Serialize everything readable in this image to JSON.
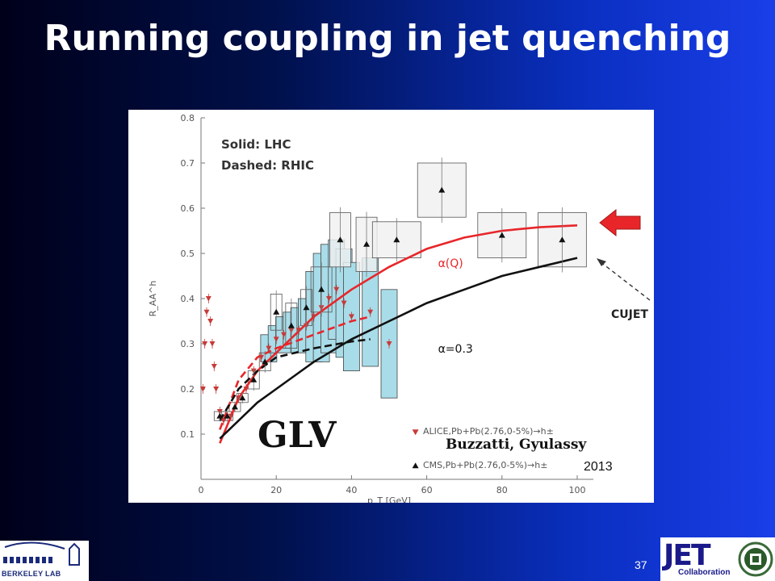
{
  "slide": {
    "title": "Running coupling in jet quenching",
    "page_number": "37"
  },
  "logos": {
    "left_text": "BERKELEY LAB",
    "right_word": "JET",
    "right_sub": "Collaboration"
  },
  "colors": {
    "red_curve": "#e8262a",
    "black_curve": "#111111",
    "alice_marker": "#c83a3a",
    "box_blue": "#a8dce8",
    "box_grey": "#f0f0f0",
    "arrow_red": "#e8262a"
  },
  "chart_data": {
    "type": "scatter",
    "title": "",
    "xlabel": "p_T [GeV]",
    "ylabel": "R_AA^h",
    "xlim": [
      0,
      100
    ],
    "ylim": [
      0,
      0.8
    ],
    "x_ticks": [
      0,
      20,
      40,
      60,
      80,
      100
    ],
    "y_ticks": [
      0.1,
      0.2,
      0.3,
      0.4,
      0.5,
      0.6,
      0.7,
      0.8
    ],
    "grid": false,
    "notes": [
      "Solid: LHC",
      "Dashed: RHIC"
    ],
    "annotations": {
      "glv": "GLV",
      "authors": "Buzzatti, Gyulassy",
      "year": "2013",
      "cujet": "CUJET"
    },
    "series": [
      {
        "name": "α(Q)",
        "kind": "curve",
        "style": "solid",
        "color": "#e8262a",
        "x": [
          5,
          10,
          15,
          20,
          30,
          40,
          50,
          60,
          70,
          80,
          90,
          100
        ],
        "y": [
          0.08,
          0.18,
          0.24,
          0.28,
          0.36,
          0.42,
          0.47,
          0.51,
          0.535,
          0.55,
          0.558,
          0.562
        ]
      },
      {
        "name": "α=0.3",
        "kind": "curve",
        "style": "solid",
        "color": "#111111",
        "x": [
          5,
          10,
          15,
          20,
          30,
          40,
          50,
          60,
          70,
          80,
          90,
          100
        ],
        "y": [
          0.09,
          0.13,
          0.17,
          0.2,
          0.26,
          0.31,
          0.35,
          0.39,
          0.42,
          0.45,
          0.47,
          0.49
        ]
      },
      {
        "name": "",
        "kind": "curve",
        "style": "dashed",
        "color": "#e8262a",
        "x": [
          5,
          10,
          15,
          20,
          30,
          40,
          45
        ],
        "y": [
          0.11,
          0.22,
          0.27,
          0.29,
          0.32,
          0.35,
          0.36
        ]
      },
      {
        "name": "",
        "kind": "curve",
        "style": "dashed",
        "color": "#111111",
        "x": [
          5,
          10,
          15,
          20,
          30,
          40,
          45
        ],
        "y": [
          0.13,
          0.2,
          0.24,
          0.27,
          0.29,
          0.305,
          0.31
        ]
      },
      {
        "name": "ALICE,Pb+Pb(2.76,0-5%)→h±",
        "kind": "points",
        "marker": "triangle-down",
        "color": "#c83a3a",
        "x": [
          0.5,
          1,
          1.5,
          2,
          2.5,
          3,
          3.5,
          4,
          5,
          6,
          8,
          10,
          12,
          14,
          16,
          18,
          20,
          22,
          24,
          26,
          28,
          30,
          32,
          34,
          36,
          38,
          40,
          45,
          50
        ],
        "y": [
          0.2,
          0.3,
          0.37,
          0.4,
          0.35,
          0.3,
          0.25,
          0.2,
          0.15,
          0.13,
          0.14,
          0.18,
          0.2,
          0.24,
          0.27,
          0.29,
          0.31,
          0.32,
          0.33,
          0.33,
          0.34,
          0.36,
          0.38,
          0.4,
          0.42,
          0.39,
          0.36,
          0.37,
          0.3
        ],
        "box_halfheight": [
          0,
          0,
          0,
          0,
          0,
          0,
          0,
          0,
          0,
          0,
          0,
          0,
          0,
          0,
          0,
          0.03,
          0.03,
          0.04,
          0.04,
          0.05,
          0.06,
          0.1,
          0.12,
          0.12,
          0.11,
          0.12,
          0.12,
          0.12,
          0.12
        ]
      },
      {
        "name": "CMS,Pb+Pb(2.76,0-5%)→h±",
        "kind": "points",
        "marker": "triangle-up",
        "color": "#111111",
        "x": [
          5,
          7,
          9,
          11,
          14,
          17,
          20,
          24,
          28,
          32,
          37,
          44,
          52,
          64,
          80,
          96
        ],
        "y": [
          0.14,
          0.14,
          0.16,
          0.18,
          0.22,
          0.26,
          0.37,
          0.34,
          0.38,
          0.42,
          0.53,
          0.52,
          0.53,
          0.64,
          0.54,
          0.53
        ],
        "box_halfheight": [
          0.01,
          0.01,
          0.01,
          0.01,
          0.02,
          0.02,
          0.04,
          0.05,
          0.04,
          0.05,
          0.06,
          0.06,
          0.04,
          0.06,
          0.05,
          0.06
        ]
      }
    ]
  }
}
